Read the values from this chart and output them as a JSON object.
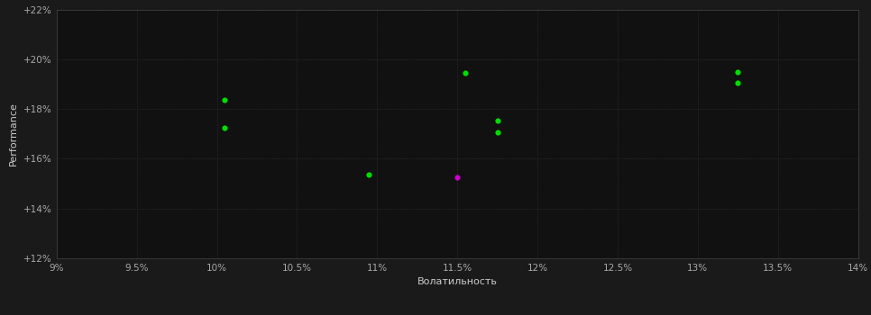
{
  "background_color": "#1a1a1a",
  "plot_bg_color": "#111111",
  "grid_color": "#2d2d2d",
  "xlabel": "Волатильность",
  "ylabel": "Performance",
  "xlim": [
    0.09,
    0.14
  ],
  "ylim": [
    0.12,
    0.22
  ],
  "xticks": [
    0.09,
    0.095,
    0.1,
    0.105,
    0.11,
    0.115,
    0.12,
    0.125,
    0.13,
    0.135,
    0.14
  ],
  "yticks": [
    0.12,
    0.14,
    0.16,
    0.18,
    0.2,
    0.22
  ],
  "xtick_labels": [
    "9%",
    "9.5%",
    "10%",
    "10.5%",
    "11%",
    "11.5%",
    "12%",
    "12.5%",
    "13%",
    "13.5%",
    "14%"
  ],
  "ytick_labels": [
    "+12%",
    "+14%",
    "+16%",
    "+18%",
    "+20%",
    "+22%"
  ],
  "green_points": [
    [
      0.1005,
      0.1835
    ],
    [
      0.1005,
      0.1725
    ],
    [
      0.1095,
      0.1535
    ],
    [
      0.1155,
      0.1945
    ],
    [
      0.1175,
      0.1755
    ],
    [
      0.1175,
      0.1705
    ],
    [
      0.1325,
      0.195
    ],
    [
      0.1325,
      0.1905
    ]
  ],
  "magenta_points": [
    [
      0.115,
      0.1525
    ]
  ],
  "green_color": "#00dd00",
  "magenta_color": "#cc00cc",
  "dot_size": 20,
  "text_color": "#cccccc",
  "tick_color": "#aaaaaa",
  "spine_color": "#444444",
  "xlabel_fontsize": 8,
  "ylabel_fontsize": 8,
  "tick_fontsize": 7.5
}
